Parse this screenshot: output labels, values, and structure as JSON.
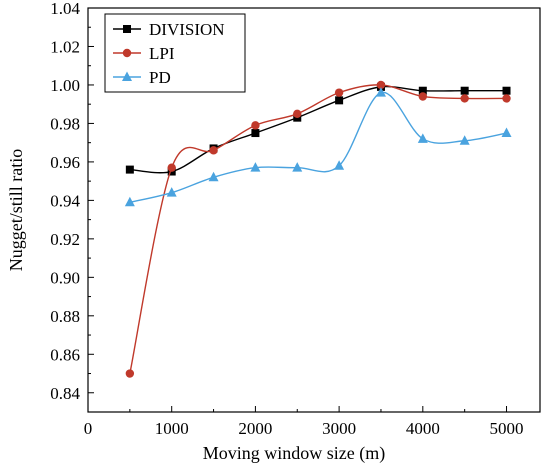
{
  "chart_data": {
    "type": "line",
    "xlabel": "Moving window size (m)",
    "ylabel": "Nugget/still ratio",
    "xlim": [
      0,
      5400
    ],
    "ylim": [
      0.83,
      1.04
    ],
    "xticks": [
      0,
      1000,
      2000,
      3000,
      4000,
      5000
    ],
    "yticks": [
      0.84,
      0.86,
      0.88,
      0.9,
      0.92,
      0.94,
      0.96,
      0.98,
      1.0,
      1.02,
      1.04
    ],
    "ytick_labels": [
      "0.84",
      "0.86",
      "0.88",
      "0.90",
      "0.92",
      "0.94",
      "0.96",
      "0.98",
      "1.00",
      "1.02",
      "1.04"
    ],
    "x": [
      500,
      1000,
      1500,
      2000,
      2500,
      3000,
      3500,
      4000,
      4500,
      5000
    ],
    "series": [
      {
        "name": "DIVISION",
        "color": "#000000",
        "marker": "square",
        "values": [
          0.956,
          0.955,
          0.967,
          0.975,
          0.983,
          0.992,
          0.999,
          0.997,
          0.997,
          0.997
        ]
      },
      {
        "name": "LPI",
        "color": "#c0392b",
        "marker": "circle",
        "values": [
          0.85,
          0.957,
          0.966,
          0.979,
          0.985,
          0.996,
          1.0,
          0.994,
          0.993,
          0.993
        ]
      },
      {
        "name": "PD",
        "color": "#4aa3df",
        "marker": "triangle",
        "values": [
          0.939,
          0.944,
          0.952,
          0.957,
          0.957,
          0.958,
          0.996,
          0.972,
          0.971,
          0.975
        ]
      }
    ],
    "legend_position": "top-left",
    "grid": false
  }
}
